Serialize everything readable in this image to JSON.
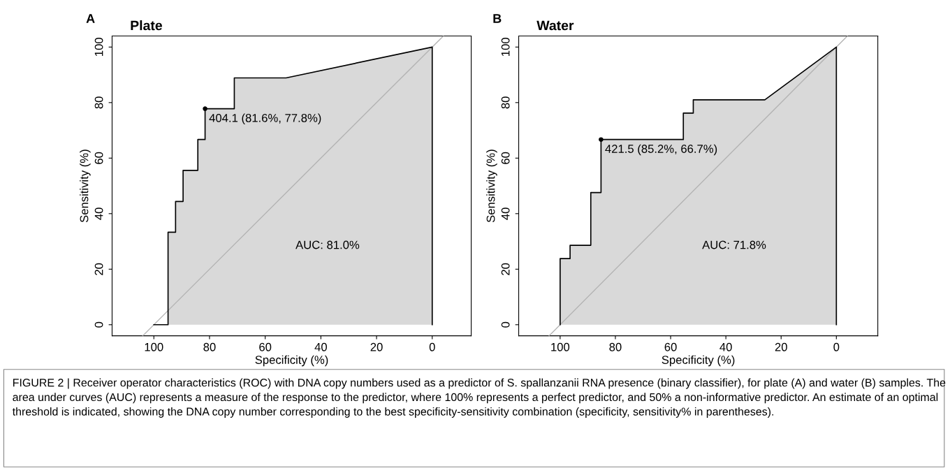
{
  "chart_data": [
    {
      "type": "area",
      "title": "Plate",
      "xlabel": "Specificity (%)",
      "ylabel": "Sensitivity (%)",
      "xlim": [
        115,
        -14
      ],
      "ylim": [
        -4,
        104
      ],
      "xticks": [
        100,
        80,
        60,
        40,
        20,
        0
      ],
      "yticks": [
        0,
        20,
        40,
        60,
        80,
        100
      ],
      "grid": false,
      "legend": false,
      "series": [
        {
          "type": "line",
          "color": "#b3b3b3",
          "x": [
            104,
            -4
          ],
          "values": [
            -4,
            104
          ]
        },
        {
          "color": "#d9d9d9",
          "x": [
            100,
            94.9,
            94.9,
            92.2,
            92.2,
            89.5,
            89.5,
            84.2,
            84.2,
            81.6,
            81.6,
            71.1,
            71.1,
            52.5,
            0,
            0
          ],
          "values": [
            0,
            0,
            33.3,
            33.3,
            44.4,
            44.4,
            55.6,
            55.6,
            66.7,
            66.7,
            77.8,
            77.8,
            88.9,
            88.9,
            100,
            0
          ]
        },
        {
          "type": "scatter",
          "color": "#000000",
          "x": [
            81.6
          ],
          "values": [
            77.8
          ]
        }
      ],
      "annotations": [
        "A",
        "AUC: 81.0%",
        {
          "text": "404.1 (81.6%, 77.8%)",
          "x": 81.6,
          "y": 77.8
        },
        "FIGURE 2 | Receiver operator characteristics (ROC) with DNA copy numbers used as a predictor of S. spallanzanii RNA presence (binary classifier), for plate (A) and water (B) samples. The area under curves (AUC) represents a measure of the response to the predictor, where 100% represents a perfect predictor, and 50% a non-informative predictor. An estimate of an optimal threshold is indicated, showing the DNA copy number corresponding to the best specificity-sensitivity combination (specificity, sensitivity% in parentheses)."
      ]
    },
    {
      "type": "area",
      "title": "Water",
      "xlabel": "Specificity (%)",
      "ylabel": "Sensitivity (%)",
      "xlim": [
        115,
        -15
      ],
      "ylim": [
        -4,
        104
      ],
      "xticks": [
        100,
        80,
        60,
        40,
        20,
        0
      ],
      "yticks": [
        0,
        20,
        40,
        60,
        80,
        100
      ],
      "grid": false,
      "legend": false,
      "series": [
        {
          "type": "line",
          "color": "#b3b3b3",
          "x": [
            104,
            -4
          ],
          "values": [
            -4,
            104
          ]
        },
        {
          "color": "#d9d9d9",
          "x": [
            100,
            100,
            96.4,
            96.4,
            88.9,
            88.9,
            85.2,
            85.2,
            55.4,
            55.4,
            51.8,
            51.8,
            25.9,
            0,
            0
          ],
          "values": [
            0,
            23.8,
            23.8,
            28.6,
            28.6,
            47.6,
            47.6,
            66.7,
            66.7,
            76.2,
            76.2,
            81.0,
            81.0,
            100,
            0
          ]
        },
        {
          "type": "scatter",
          "color": "#000000",
          "x": [
            85.2
          ],
          "values": [
            66.7
          ]
        }
      ],
      "annotations": [
        "B",
        "AUC: 71.8%",
        {
          "text": "421.5 (85.2%, 66.7%)",
          "x": 85.2,
          "y": 66.7
        }
      ]
    }
  ]
}
